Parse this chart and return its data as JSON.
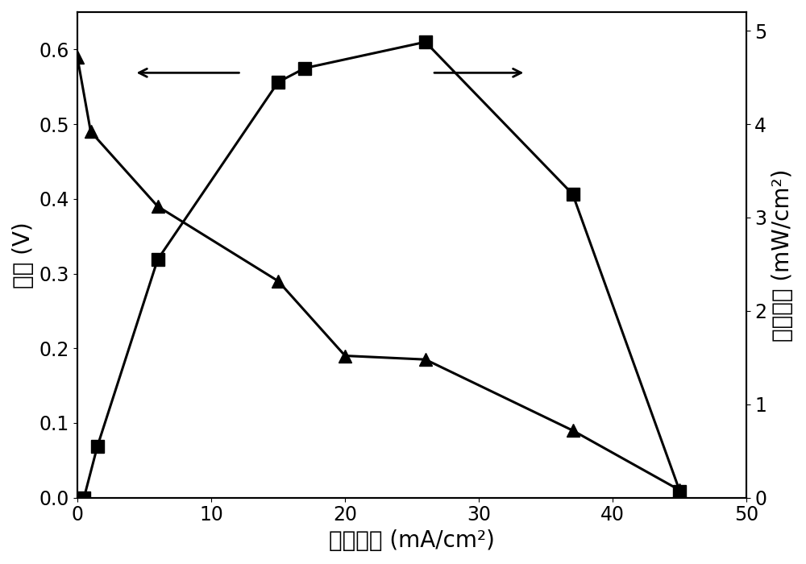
{
  "voltage_x": [
    0,
    1,
    6,
    15,
    20,
    26,
    37,
    45
  ],
  "voltage_y": [
    0.59,
    0.49,
    0.39,
    0.29,
    0.19,
    0.185,
    0.09,
    0.01
  ],
  "power_x": [
    0.5,
    1.5,
    6,
    15,
    17,
    26,
    37,
    45
  ],
  "power_y": [
    0.0,
    0.55,
    2.55,
    4.45,
    4.6,
    4.88,
    3.25,
    0.07
  ],
  "xlabel": "电流密度 (mA/cm²)",
  "ylabel_left": "电压 (V)",
  "ylabel_right": "功率密度 (mW/cm²)",
  "xlim": [
    0,
    50
  ],
  "ylim_left": [
    0,
    0.65
  ],
  "ylim_right": [
    0,
    5.2
  ],
  "xticks": [
    0,
    10,
    20,
    30,
    40,
    50
  ],
  "yticks_left": [
    0.0,
    0.1,
    0.2,
    0.3,
    0.4,
    0.5,
    0.6
  ],
  "yticks_right": [
    0,
    1,
    2,
    3,
    4,
    5
  ],
  "line_color": "#000000",
  "marker_size": 11,
  "linewidth": 2.2,
  "background_color": "#ffffff",
  "font_size_labels": 20,
  "font_size_ticks": 17
}
